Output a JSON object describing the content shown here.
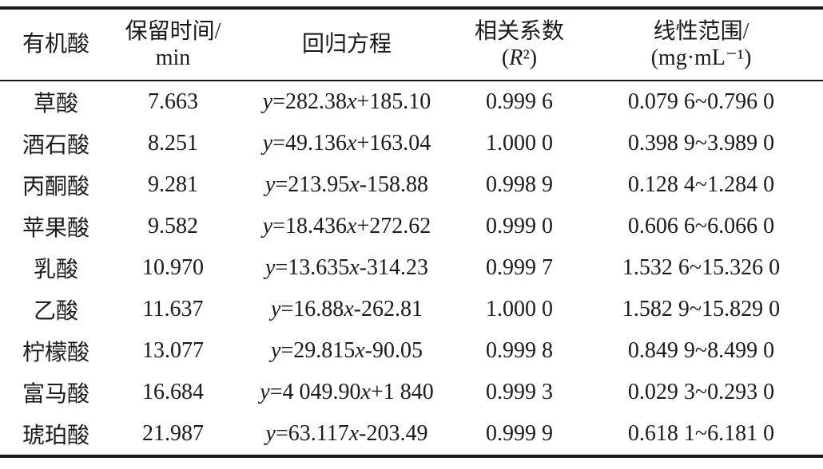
{
  "colors": {
    "background": "#ffffff",
    "text": "#1b1b1b",
    "rule": "#1a1a1a"
  },
  "table": {
    "columns": [
      {
        "key": "acid",
        "label_lines": [
          "有机酸"
        ]
      },
      {
        "key": "retention",
        "label_lines": [
          "保留时间/",
          "min"
        ]
      },
      {
        "key": "equation",
        "label_lines": [
          "回归方程"
        ]
      },
      {
        "key": "r2",
        "label_lines": [
          "相关系数",
          "(R²)"
        ]
      },
      {
        "key": "range",
        "label_lines": [
          "线性范围/",
          "(mg·mL⁻¹)"
        ]
      }
    ],
    "rows": [
      {
        "acid": "草酸",
        "retention": "7.663",
        "equation": "y=282.38x+185.10",
        "r2": "0.999 6",
        "range": "0.079 6~0.796 0"
      },
      {
        "acid": "酒石酸",
        "retention": "8.251",
        "equation": "y=49.136x+163.04",
        "r2": "1.000 0",
        "range": "0.398 9~3.989 0"
      },
      {
        "acid": "丙酮酸",
        "retention": "9.281",
        "equation": "y=213.95x-158.88",
        "r2": "0.998 9",
        "range": "0.128 4~1.284 0"
      },
      {
        "acid": "苹果酸",
        "retention": "9.582",
        "equation": "y=18.436x+272.62",
        "r2": "0.999 0",
        "range": "0.606 6~6.066 0"
      },
      {
        "acid": "乳酸",
        "retention": "10.970",
        "equation": "y=13.635x-314.23",
        "r2": "0.999 7",
        "range": "1.532 6~15.326 0"
      },
      {
        "acid": "乙酸",
        "retention": "11.637",
        "equation": "y=16.88x-262.81",
        "r2": "1.000 0",
        "range": "1.582 9~15.829 0"
      },
      {
        "acid": "柠檬酸",
        "retention": "13.077",
        "equation": "y=29.815x-90.05",
        "r2": "0.999 8",
        "range": "0.849 9~8.499 0"
      },
      {
        "acid": "富马酸",
        "retention": "16.684",
        "equation": "y=4 049.90x+1 840",
        "r2": "0.999 3",
        "range": "0.029 3~0.293 0"
      },
      {
        "acid": "琥珀酸",
        "retention": "21.987",
        "equation": "y=63.117x-203.49",
        "r2": "0.999 9",
        "range": "0.618 1~6.181 0"
      }
    ]
  }
}
